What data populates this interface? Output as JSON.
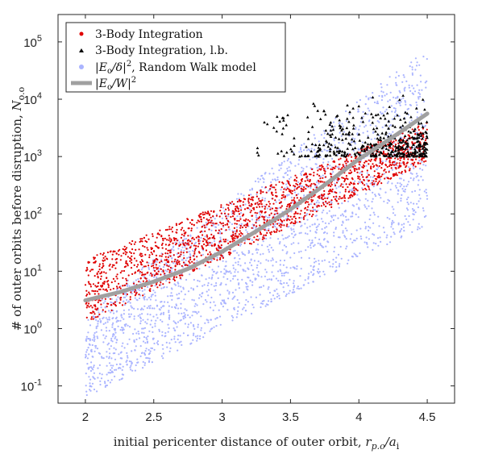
{
  "chart_data": {
    "type": "scatter",
    "title": "",
    "xlabel": "initial pericenter distance of outer orbit, ",
    "xlabel_math": "r",
    "xlabel_math_sub": "p.o",
    "xlabel_math_tail": "/a",
    "xlabel_math_tail_sub": "i",
    "ylabel": "# of outer orbits before disruption, ",
    "ylabel_math": "N",
    "ylabel_math_sub": "o.o",
    "xlim": [
      1.8,
      4.7
    ],
    "ylim": [
      0.05,
      300000
    ],
    "yscale": "log",
    "grid": false,
    "legend_position": "top-left",
    "x_ticks": [
      2,
      2.5,
      3,
      3.5,
      4,
      4.5
    ],
    "x_tick_labels": [
      "2",
      "2.5",
      "3",
      "3.5",
      "4",
      "4.5"
    ],
    "y_ticks": [
      0.1,
      1,
      10,
      100,
      1000,
      10000,
      100000
    ],
    "y_tick_base": "10",
    "y_tick_exponents": [
      "-1",
      "0",
      "1",
      "2",
      "3",
      "4",
      "5"
    ],
    "series": [
      {
        "name": "3-Body Integration",
        "marker": "dot",
        "color": "#e00000",
        "x_range": [
          2.0,
          4.5
        ],
        "trend_log10_start": [
          0.1,
          1.2
        ],
        "trend_log10_end": [
          2.9,
          3.6
        ]
      },
      {
        "name": "3-Body Integration, l.b.",
        "marker": "triangle",
        "color": "#000000",
        "x_range": [
          3.2,
          4.5
        ],
        "y_range": [
          1000,
          13000
        ]
      },
      {
        "name": "|E",
        "name_sub": "o",
        "name_tail": "/δ|",
        "name_sup": "2",
        "name_suffix": ", Random Walk model",
        "marker": "dot",
        "color": "#aab4ff",
        "x_range": [
          2.0,
          4.5
        ],
        "trend_log10_start": [
          -1.2,
          0.3
        ],
        "trend_log10_end": [
          1.8,
          4.9
        ]
      },
      {
        "name": "|E",
        "name_sub": "o",
        "name_tail": "/W|",
        "name_sup": "2",
        "marker": "line",
        "color": "#a0a0a0",
        "x": [
          2.0,
          2.25,
          2.5,
          2.75,
          3.0,
          3.25,
          3.5,
          3.75,
          4.0,
          4.25,
          4.5
        ],
        "y": [
          3.1,
          4.3,
          6.6,
          11,
          22,
          50,
          120,
          320,
          900,
          2200,
          5600
        ]
      }
    ]
  }
}
